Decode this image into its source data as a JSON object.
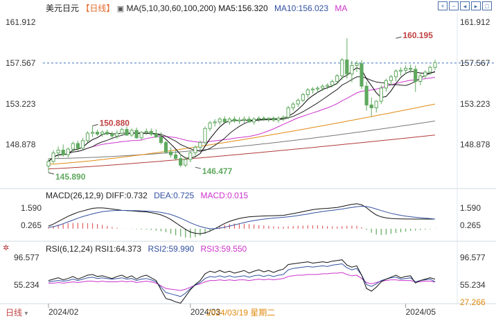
{
  "main_legend": {
    "symbol": "美元日元",
    "period": "【日线】",
    "ma_label": "MA(5,10,30,60,100,200)",
    "ma5": "MA5:156.320",
    "ma10": "MA10:156.023",
    "ma_tail": "MA"
  },
  "macd_legend": {
    "title": "MACD(26,12,9)",
    "diff": "DIFF:0.732",
    "dea": "DEA:0.725",
    "macd": "MACD:0.015"
  },
  "rsi_legend": {
    "title": "RSI(6,12,24)",
    "rsi1": "RSI1:64.373",
    "rsi2": "RSI2:59.990",
    "rsi3": "RSI3:59.550"
  },
  "footer": {
    "period_button": "日线",
    "cursor_date": "2024/03/19 星期二"
  },
  "colors": {
    "up": "#5fa85f",
    "down": "#5fa85f",
    "ma5": "#000000",
    "ma10": "#222222",
    "ma30": "#cc33cc",
    "ma60": "#e08a10",
    "ma100": "#777777",
    "ma200": "#b23a3a",
    "dashed": "#3b6fb6"
  },
  "chart_data": [
    {
      "type": "candlestick",
      "title": "美元日元",
      "y_ticks": [
        "161.912",
        "157.567",
        "153.223",
        "148.878"
      ],
      "ylim": [
        144.5,
        162.5
      ],
      "x_ticks": [
        "2024/02",
        "2024/03",
        "2024/05"
      ],
      "dashed_level": "157.567",
      "annotations": [
        {
          "label": "160.195",
          "value": 160.195,
          "index": 71
        },
        {
          "label": "150.880",
          "value": 150.88,
          "index": 9
        },
        {
          "label": "145.890",
          "value": 145.89,
          "index": 0
        },
        {
          "label": "146.477",
          "value": 146.477,
          "index": 30
        }
      ],
      "candles": [
        [
          146.6,
          147.4,
          145.9,
          147.1
        ],
        [
          147.1,
          148.3,
          146.9,
          148.0
        ],
        [
          148.0,
          148.7,
          147.5,
          148.3
        ],
        [
          148.3,
          148.9,
          147.6,
          147.8
        ],
        [
          147.8,
          148.6,
          147.5,
          148.4
        ],
        [
          148.4,
          149.2,
          148.1,
          149.0
        ],
        [
          149.0,
          149.3,
          148.2,
          148.5
        ],
        [
          148.5,
          149.6,
          148.3,
          149.3
        ],
        [
          149.3,
          150.3,
          149.1,
          150.1
        ],
        [
          150.1,
          150.88,
          149.7,
          150.2
        ],
        [
          150.2,
          150.5,
          149.8,
          150.0
        ],
        [
          150.0,
          150.4,
          149.7,
          150.2
        ],
        [
          150.2,
          150.5,
          149.9,
          150.0
        ],
        [
          150.0,
          150.3,
          149.6,
          149.8
        ],
        [
          149.8,
          150.4,
          149.5,
          150.1
        ],
        [
          150.1,
          150.7,
          149.9,
          150.5
        ],
        [
          150.5,
          150.8,
          149.8,
          149.9
        ],
        [
          149.9,
          150.6,
          149.7,
          150.4
        ],
        [
          150.4,
          150.7,
          149.5,
          149.6
        ],
        [
          149.6,
          150.3,
          149.4,
          150.2
        ],
        [
          150.2,
          150.6,
          149.9,
          150.3
        ],
        [
          150.3,
          150.6,
          149.8,
          150.0
        ],
        [
          150.0,
          150.5,
          149.6,
          149.7
        ],
        [
          149.7,
          150.2,
          148.9,
          149.1
        ],
        [
          149.1,
          149.3,
          147.9,
          148.1
        ],
        [
          148.1,
          148.6,
          147.5,
          147.8
        ],
        [
          147.8,
          148.3,
          147.2,
          147.4
        ],
        [
          147.4,
          147.9,
          146.477,
          146.7
        ],
        [
          146.7,
          147.6,
          146.5,
          147.3
        ],
        [
          147.3,
          148.2,
          147.0,
          148.0
        ],
        [
          148.0,
          148.8,
          147.7,
          148.6
        ],
        [
          148.6,
          149.3,
          148.3,
          149.1
        ],
        [
          149.1,
          150.8,
          148.9,
          150.6
        ],
        [
          150.6,
          151.4,
          150.3,
          151.2
        ],
        [
          151.2,
          151.6,
          150.8,
          151.3
        ],
        [
          151.3,
          151.8,
          151.0,
          151.6
        ],
        [
          151.6,
          151.9,
          151.2,
          151.3
        ],
        [
          151.3,
          151.8,
          151.0,
          151.6
        ],
        [
          151.6,
          151.9,
          151.2,
          151.4
        ],
        [
          151.4,
          151.8,
          151.1,
          151.5
        ],
        [
          151.5,
          151.9,
          151.2,
          151.6
        ],
        [
          151.6,
          151.9,
          151.2,
          151.3
        ],
        [
          151.3,
          151.8,
          151.0,
          151.6
        ],
        [
          151.6,
          151.9,
          151.3,
          151.7
        ],
        [
          151.7,
          151.9,
          151.4,
          151.6
        ],
        [
          151.6,
          151.8,
          151.3,
          151.7
        ],
        [
          151.7,
          151.9,
          151.3,
          151.5
        ],
        [
          151.5,
          151.9,
          151.2,
          151.7
        ],
        [
          151.7,
          152.0,
          151.4,
          151.8
        ],
        [
          151.8,
          153.0,
          151.6,
          152.8
        ],
        [
          152.8,
          153.4,
          152.5,
          153.2
        ],
        [
          153.2,
          153.8,
          152.9,
          153.6
        ],
        [
          153.6,
          154.4,
          153.4,
          154.2
        ],
        [
          154.2,
          154.9,
          153.9,
          154.7
        ],
        [
          154.7,
          155.0,
          154.3,
          154.8
        ],
        [
          154.8,
          155.1,
          154.4,
          154.9
        ],
        [
          154.9,
          155.3,
          154.6,
          155.1
        ],
        [
          155.1,
          155.4,
          154.8,
          155.2
        ],
        [
          155.2,
          155.8,
          155.0,
          155.6
        ],
        [
          155.6,
          156.4,
          155.3,
          156.2
        ],
        [
          156.2,
          158.1,
          155.8,
          157.9
        ],
        [
          157.9,
          160.195,
          155.9,
          156.4
        ],
        [
          156.4,
          157.8,
          155.5,
          157.3
        ],
        [
          157.3,
          157.8,
          156.6,
          157.5
        ],
        [
          157.5,
          157.9,
          154.8,
          155.1
        ],
        [
          155.1,
          155.6,
          152.5,
          153.1
        ],
        [
          153.1,
          153.9,
          151.9,
          152.8
        ],
        [
          152.8,
          153.6,
          152.3,
          153.5
        ],
        [
          153.5,
          155.2,
          153.2,
          154.9
        ],
        [
          154.9,
          155.9,
          154.5,
          155.7
        ],
        [
          155.7,
          156.3,
          155.2,
          156.1
        ],
        [
          156.1,
          156.9,
          155.6,
          156.7
        ],
        [
          156.7,
          157.1,
          156.2,
          156.8
        ],
        [
          156.8,
          157.3,
          156.4,
          157.0
        ],
        [
          157.0,
          157.4,
          156.5,
          156.9
        ],
        [
          156.9,
          157.3,
          154.5,
          155.6
        ],
        [
          155.6,
          156.4,
          155.2,
          156.2
        ],
        [
          156.2,
          156.8,
          155.9,
          156.6
        ],
        [
          156.6,
          157.3,
          156.3,
          157.1
        ],
        [
          157.1,
          157.9,
          156.8,
          157.6
        ]
      ]
    },
    {
      "type": "bar",
      "title": "MACD(26,12,9)",
      "y_ticks": [
        "1.590",
        "0.265"
      ],
      "series": [
        {
          "name": "DIFF",
          "values": [
            0.2,
            0.35,
            0.55,
            0.75,
            0.95,
            1.1,
            1.25,
            1.35,
            1.45,
            1.55,
            1.58,
            1.58,
            1.55,
            1.5,
            1.45,
            1.4,
            1.38,
            1.36,
            1.33,
            1.3,
            1.28,
            1.22,
            1.15,
            1.05,
            0.9,
            0.7,
            0.45,
            0.2,
            -0.05,
            -0.25,
            -0.35,
            -0.38,
            -0.32,
            -0.18,
            0.0,
            0.2,
            0.4,
            0.55,
            0.68,
            0.78,
            0.85,
            0.9,
            0.93,
            0.95,
            0.97,
            0.98,
            0.99,
            1.0,
            1.02,
            1.08,
            1.15,
            1.22,
            1.3,
            1.38,
            1.45,
            1.5,
            1.53,
            1.55,
            1.58,
            1.62,
            1.7,
            1.78,
            1.85,
            1.9,
            1.82,
            1.6,
            1.3,
            1.05,
            0.9,
            0.82,
            0.78,
            0.76,
            0.75,
            0.74,
            0.74,
            0.73,
            0.73,
            0.73,
            0.73,
            0.73
          ]
        },
        {
          "name": "DEA",
          "values": [
            0.1,
            0.15,
            0.25,
            0.38,
            0.52,
            0.66,
            0.8,
            0.92,
            1.03,
            1.13,
            1.22,
            1.29,
            1.34,
            1.37,
            1.39,
            1.39,
            1.39,
            1.38,
            1.37,
            1.36,
            1.34,
            1.32,
            1.29,
            1.24,
            1.17,
            1.08,
            0.95,
            0.8,
            0.63,
            0.45,
            0.3,
            0.17,
            0.07,
            0.0,
            0.0,
            0.04,
            0.11,
            0.2,
            0.29,
            0.38,
            0.47,
            0.55,
            0.62,
            0.68,
            0.73,
            0.77,
            0.81,
            0.84,
            0.87,
            0.9,
            0.95,
            1.0,
            1.06,
            1.12,
            1.19,
            1.25,
            1.31,
            1.36,
            1.4,
            1.45,
            1.5,
            1.56,
            1.62,
            1.68,
            1.71,
            1.69,
            1.61,
            1.5,
            1.38,
            1.27,
            1.17,
            1.09,
            1.02,
            0.96,
            0.91,
            0.87,
            0.83,
            0.8,
            0.77,
            0.73
          ]
        },
        {
          "name": "MACD",
          "values": [
            0.1,
            0.2,
            0.3,
            0.37,
            0.43,
            0.44,
            0.45,
            0.43,
            0.42,
            0.42,
            0.36,
            0.29,
            0.21,
            0.13,
            0.06,
            0.01,
            -0.01,
            -0.02,
            -0.04,
            -0.06,
            -0.06,
            -0.1,
            -0.14,
            -0.19,
            -0.27,
            -0.38,
            -0.5,
            -0.6,
            -0.68,
            -0.7,
            -0.65,
            -0.55,
            -0.39,
            -0.18,
            0.0,
            0.16,
            0.29,
            0.35,
            0.39,
            0.4,
            0.38,
            0.35,
            0.31,
            0.27,
            0.24,
            0.21,
            0.18,
            0.16,
            0.15,
            0.18,
            0.2,
            0.22,
            0.24,
            0.26,
            0.26,
            0.25,
            0.22,
            0.19,
            0.18,
            0.17,
            0.2,
            0.22,
            0.23,
            0.22,
            0.11,
            -0.09,
            -0.31,
            -0.45,
            -0.48,
            -0.45,
            -0.39,
            -0.33,
            -0.27,
            -0.22,
            -0.17,
            -0.14,
            -0.1,
            -0.07,
            -0.04,
            0.015
          ]
        }
      ]
    },
    {
      "type": "line",
      "title": "RSI(6,12,24)",
      "y_ticks": [
        "96.577",
        "55.234",
        "27.266"
      ],
      "ylim": [
        27.266,
        100
      ],
      "series": [
        {
          "name": "RSI1",
          "values": [
            62,
            64,
            66,
            63,
            65,
            68,
            64,
            67,
            70,
            71,
            68,
            69,
            67,
            65,
            68,
            70,
            66,
            69,
            64,
            68,
            70,
            66,
            62,
            48,
            35,
            33,
            30,
            28,
            38,
            48,
            56,
            62,
            72,
            76,
            74,
            77,
            74,
            76,
            73,
            75,
            77,
            73,
            76,
            78,
            75,
            77,
            74,
            77,
            79,
            86,
            87,
            88,
            89,
            90,
            88,
            89,
            90,
            89,
            91,
            92,
            93,
            85,
            82,
            84,
            70,
            50,
            46,
            52,
            60,
            64,
            67,
            70,
            66,
            68,
            69,
            58,
            62,
            64,
            66,
            64
          ]
        },
        {
          "name": "RSI2",
          "values": [
            60,
            61,
            62,
            61,
            62,
            64,
            62,
            64,
            66,
            67,
            65,
            66,
            65,
            64,
            65,
            66,
            64,
            65,
            62,
            64,
            65,
            63,
            60,
            52,
            44,
            42,
            40,
            38,
            43,
            50,
            55,
            59,
            65,
            68,
            67,
            69,
            67,
            69,
            67,
            68,
            69,
            67,
            69,
            70,
            68,
            70,
            68,
            70,
            71,
            78,
            80,
            81,
            82,
            83,
            82,
            83,
            84,
            83,
            85,
            86,
            87,
            81,
            78,
            80,
            70,
            56,
            53,
            57,
            62,
            64,
            66,
            67,
            64,
            65,
            66,
            60,
            62,
            63,
            64,
            60
          ]
        },
        {
          "name": "RSI3",
          "values": [
            58,
            58,
            59,
            58,
            59,
            60,
            59,
            60,
            61,
            61,
            60,
            61,
            60,
            60,
            60,
            61,
            60,
            61,
            59,
            60,
            61,
            60,
            58,
            54,
            50,
            49,
            48,
            47,
            49,
            52,
            55,
            57,
            60,
            62,
            62,
            63,
            62,
            63,
            62,
            63,
            63,
            62,
            63,
            64,
            63,
            64,
            63,
            64,
            65,
            68,
            69,
            70,
            70,
            71,
            71,
            71,
            72,
            72,
            73,
            73,
            74,
            71,
            69,
            70,
            65,
            59,
            57,
            59,
            61,
            62,
            63,
            63,
            62,
            62,
            62,
            60,
            60,
            61,
            61,
            59.55
          ]
        }
      ]
    }
  ]
}
